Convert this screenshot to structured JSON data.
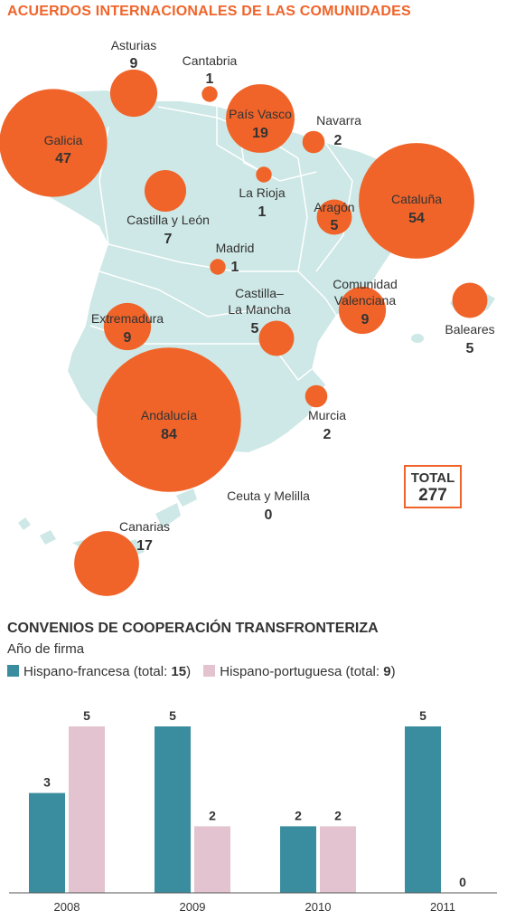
{
  "map": {
    "title": "ACUERDOS INTERNACIONALES DE LAS COMUNIDADES",
    "colors": {
      "land": "#cde8e6",
      "border": "#ffffff",
      "bubble": "#f0642a"
    },
    "regions": [
      {
        "id": "asturias",
        "name": "Asturias",
        "value": "9"
      },
      {
        "id": "cantabria",
        "name": "Cantabria",
        "value": "1"
      },
      {
        "id": "pais-vasco",
        "name": "País Vasco",
        "value": "19"
      },
      {
        "id": "navarra",
        "name": "Navarra",
        "value": "2"
      },
      {
        "id": "galicia",
        "name": "Galicia",
        "value": "47"
      },
      {
        "id": "la-rioja",
        "name": "La Rioja",
        "value": "1"
      },
      {
        "id": "aragon",
        "name": "Aragón",
        "value": "5"
      },
      {
        "id": "cataluna",
        "name": "Cataluña",
        "value": "54"
      },
      {
        "id": "castilla-leon",
        "name": "Castilla y León",
        "value": "7"
      },
      {
        "id": "madrid",
        "name": "Madrid",
        "value": "1"
      },
      {
        "id": "castilla-mancha",
        "name_line1": "Castilla–",
        "name_line2": "La Mancha",
        "value": "5"
      },
      {
        "id": "comunidad-valenciana",
        "name_line1": "Comunidad",
        "name_line2": "Valenciana",
        "value": "9"
      },
      {
        "id": "baleares",
        "name": "Baleares",
        "value": "5"
      },
      {
        "id": "extremadura",
        "name": "Extremadura",
        "value": "9"
      },
      {
        "id": "andalucia",
        "name": "Andalucía",
        "value": "84"
      },
      {
        "id": "murcia",
        "name": "Murcia",
        "value": "2"
      },
      {
        "id": "ceuta-melilla",
        "name": "Ceuta y Melilla",
        "value": "0"
      },
      {
        "id": "canarias",
        "name": "Canarias",
        "value": "17"
      }
    ],
    "total": {
      "label": "TOTAL",
      "value": "277"
    }
  },
  "bars": {
    "title": "CONVENIOS DE COOPERACIÓN TRANSFRONTERIZA",
    "subtitle": "Año de firma",
    "legend": [
      {
        "prefix": "Hispano-francesa (total: ",
        "total": "15",
        "suffix": ")",
        "color": "#3a8d9f"
      },
      {
        "prefix": "Hispano-portuguesa (total: ",
        "total": "9",
        "suffix": ")",
        "color": "#e3c3cf"
      }
    ]
  },
  "chart_data": {
    "type": "bar",
    "title": "CONVENIOS DE COOPERACIÓN TRANSFRONTERIZA",
    "subtitle": "Año de firma",
    "categories": [
      "2008",
      "2009",
      "2010",
      "2011"
    ],
    "series": [
      {
        "name": "Hispano-francesa",
        "values": [
          3,
          5,
          2,
          5
        ],
        "color": "#3a8d9f"
      },
      {
        "name": "Hispano-portuguesa",
        "values": [
          5,
          2,
          2,
          0
        ],
        "color": "#e3c3cf"
      }
    ],
    "ylim": [
      0,
      5
    ],
    "grid": false,
    "legend_position": "top-left"
  }
}
